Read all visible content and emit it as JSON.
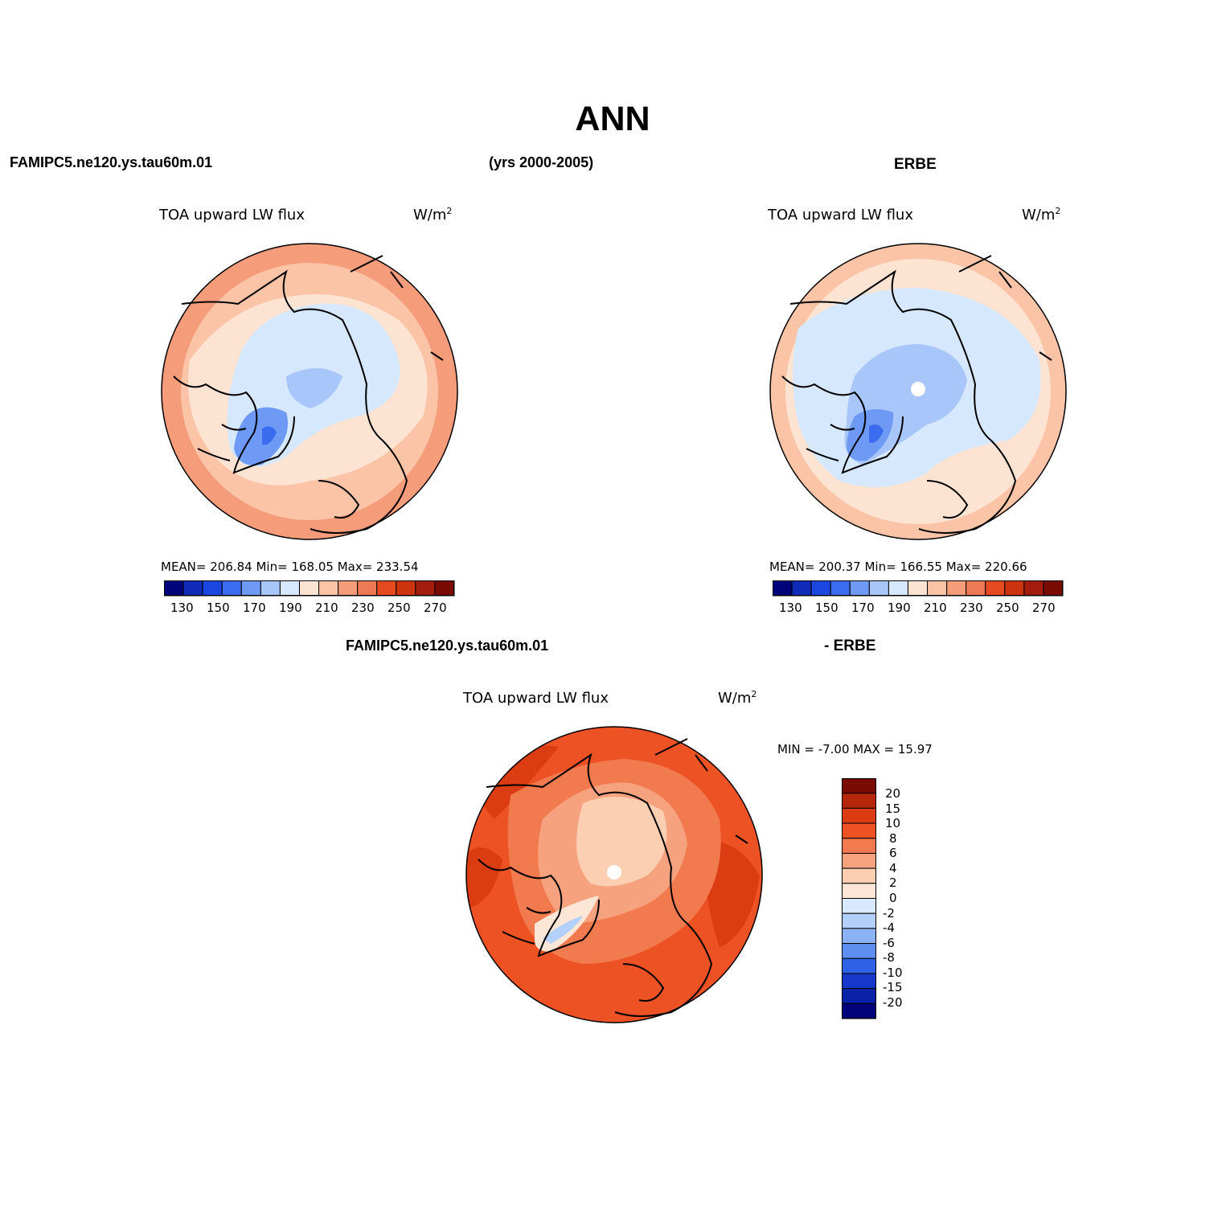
{
  "header": {
    "title": "ANN",
    "case_name": "FAMIPC5.ne120.ys.tau60m.01",
    "years": "(yrs 2000-2005)",
    "obs_name": "ERBE"
  },
  "panels": [
    {
      "id": "model",
      "field_label": "TOA upward LW flux",
      "units": "W/m",
      "units_exp": "2",
      "stats": "MEAN= 206.84   Min= 168.05   Max= 233.54",
      "colorbar_labels": [
        "130",
        "150",
        "170",
        "190",
        "210",
        "230",
        "250",
        "270"
      ]
    },
    {
      "id": "obs",
      "field_label": "TOA upward LW flux",
      "units": "W/m",
      "units_exp": "2",
      "stats": "MEAN= 200.37   Min= 166.55   Max= 220.66",
      "colorbar_labels": [
        "130",
        "150",
        "170",
        "190",
        "210",
        "230",
        "250",
        "270"
      ]
    }
  ],
  "diff_panel": {
    "title_left": "FAMIPC5.ne120.ys.tau60m.01",
    "title_right": "- ERBE",
    "field_label": "TOA upward LW flux",
    "units": "W/m",
    "units_exp": "2",
    "minmax": "MIN =   -7.00 MAX =   15.97",
    "colorbar_labels": [
      "20",
      "15",
      "10",
      "8",
      "6",
      "4",
      "2",
      "0",
      "-2",
      "-4",
      "-6",
      "-8",
      "-10",
      "-15",
      "-20"
    ]
  },
  "colors": {
    "abs_scale": [
      "#00037a",
      "#0f2bb8",
      "#1c46e0",
      "#3b6cf0",
      "#6e99f5",
      "#a8c6fa",
      "#d6e8fd",
      "#fde3d1",
      "#fbc4a7",
      "#f59c7a",
      "#ee7a55",
      "#e64a20",
      "#cc3410",
      "#a41c0b",
      "#7a0b03"
    ],
    "diff_scale": [
      "#7a0b03",
      "#b4270a",
      "#dc3c12",
      "#ec5224",
      "#f27a4f",
      "#f7a27f",
      "#fcceb2",
      "#fde6d6",
      "#d9e9fd",
      "#b3cffb",
      "#8bb1f7",
      "#5f8ef1",
      "#2f61e6",
      "#1838ca",
      "#0b23a8",
      "#00037a"
    ]
  }
}
